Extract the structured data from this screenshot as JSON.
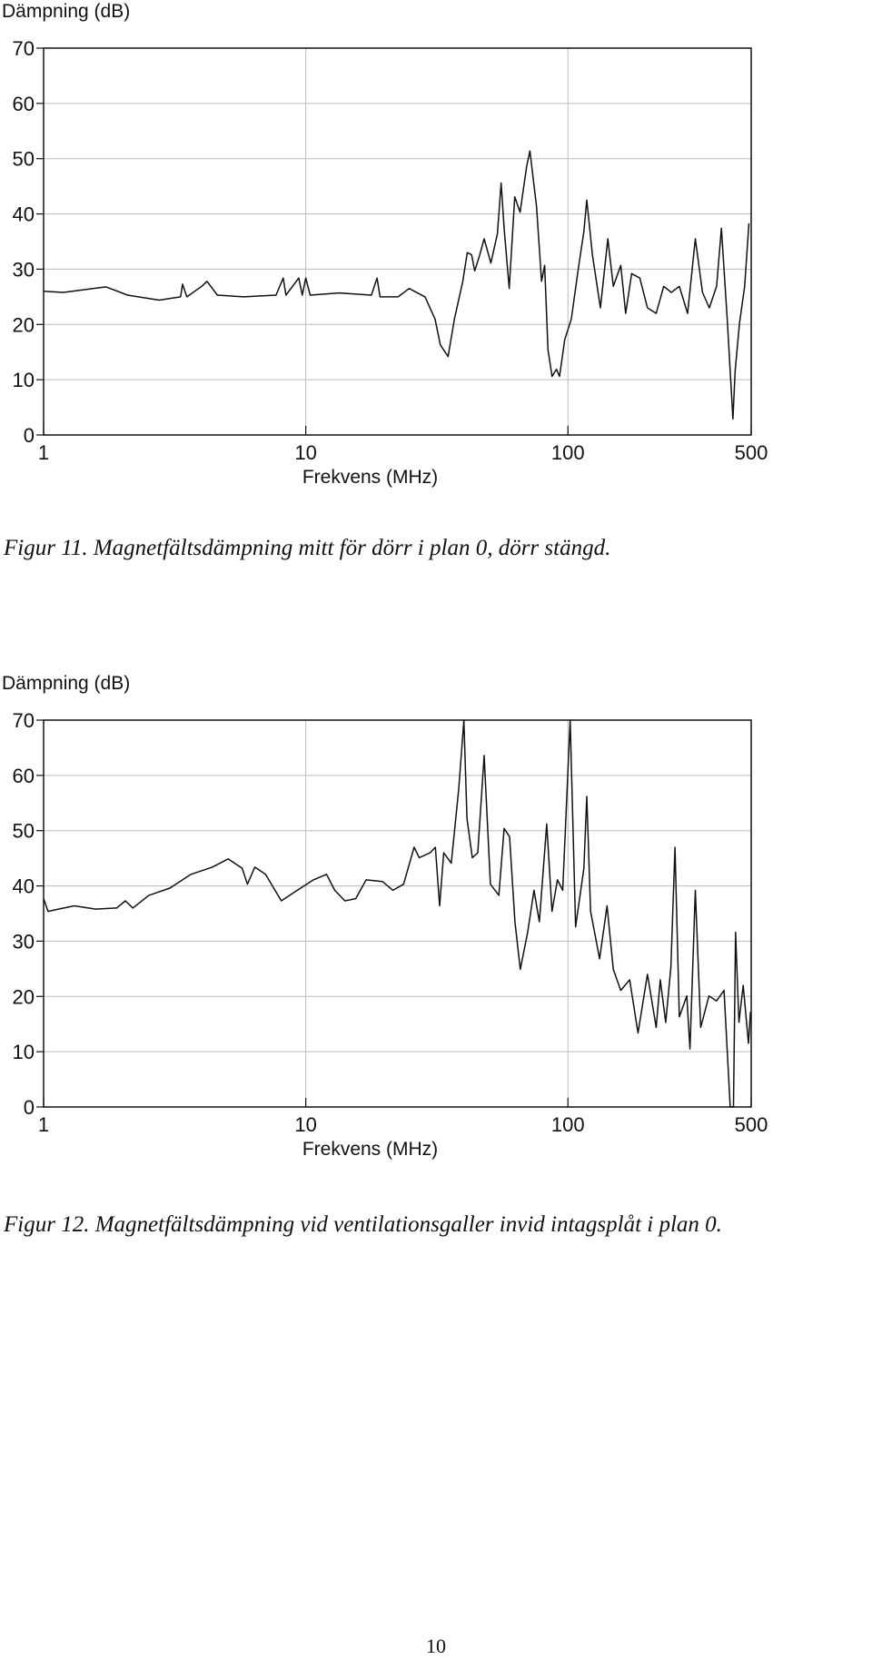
{
  "chart_data": [
    {
      "type": "line",
      "y_label": "Dämpning (dB)",
      "x_label": "Frekvens (MHz)",
      "log_x": true,
      "grid": true,
      "caption": "Figur 11. Magnetfältsdämpning mitt för dörr i plan 0, dörr stängd.",
      "xlim": [
        1,
        500
      ],
      "xticks": [
        1,
        10,
        100,
        500
      ],
      "ylim": [
        0,
        70
      ],
      "yticks": [
        0,
        10,
        20,
        30,
        40,
        50,
        60,
        70
      ],
      "series": [
        {
          "color": "#111111",
          "x": [
            1,
            1.19,
            1.73,
            2.09,
            2.76,
            3.33,
            3.39,
            3.52,
            4.01,
            4.2,
            4.6,
            5.8,
            7.7,
            8.2,
            8.4,
            9.4,
            9.7,
            10,
            10.4,
            13.4,
            17.8,
            18.7,
            19.2,
            22.5,
            24.8,
            28.5,
            31.1,
            32.6,
            34.9,
            36.9,
            39.7,
            41.3,
            42.9,
            44.1,
            46.1,
            47.9,
            50.8,
            53.8,
            55.6,
            57.1,
            59.7,
            62.7,
            65.7,
            69.6,
            71.6,
            75.9,
            79.3,
            81.5,
            83.9,
            87,
            90.4,
            92.9,
            97.3,
            103,
            110,
            115,
            118,
            124,
            133,
            142,
            149,
            159,
            166,
            175,
            188,
            201,
            217,
            232,
            248,
            266,
            286,
            306,
            326,
            346,
            369,
            385,
            405,
            426,
            434,
            451,
            472,
            490
          ],
          "values": [
            26,
            25.8,
            26.8,
            25.3,
            24.4,
            25,
            27.3,
            25,
            26.9,
            27.8,
            25.3,
            25,
            25.3,
            28.4,
            25.3,
            28.4,
            25.3,
            28.4,
            25.3,
            25.7,
            25.3,
            28.4,
            25,
            25,
            26.5,
            25,
            21,
            16.3,
            14.2,
            21,
            27.8,
            33,
            32.6,
            29.7,
            32.6,
            35.5,
            31.1,
            36.4,
            45.6,
            37.4,
            26.5,
            43.1,
            40.3,
            48.6,
            51.4,
            41.3,
            27.8,
            30.7,
            15.4,
            10.6,
            11.9,
            10.6,
            17.3,
            21,
            30.7,
            36.8,
            42.5,
            32.6,
            23,
            35.5,
            26.9,
            30.7,
            22,
            29.2,
            28.4,
            23,
            22,
            26.9,
            25.8,
            26.9,
            22,
            35.5,
            25.8,
            23,
            26.9,
            37.4,
            21,
            2.9,
            11.5,
            20.2,
            26.9,
            38.3
          ]
        }
      ]
    },
    {
      "type": "line",
      "y_label": "Dämpning (dB)",
      "x_label": "Frekvens (MHz)",
      "log_x": true,
      "grid": true,
      "caption": "Figur 12. Magnetfältsdämpning vid ventilationsgaller invid intagsplåt i plan 0.",
      "xlim": [
        1,
        500
      ],
      "xticks": [
        1,
        10,
        100,
        500
      ],
      "ylim": [
        0,
        70
      ],
      "yticks": [
        0,
        10,
        20,
        30,
        40,
        50,
        60,
        70
      ],
      "series": [
        {
          "color": "#111111",
          "x": [
            1,
            1.04,
            1.14,
            1.31,
            1.58,
            1.9,
            2.05,
            2.19,
            2.52,
            3.03,
            3.65,
            4.4,
            5.06,
            5.72,
            5.99,
            6.39,
            7.02,
            8.07,
            9.28,
            10.7,
            12,
            12.9,
            14.1,
            15.5,
            17,
            19.6,
            21.5,
            23.6,
            25.9,
            27.1,
            29.8,
            31.2,
            32.4,
            33.6,
            35.9,
            38.3,
            40.1,
            41.2,
            43.2,
            45.3,
            47.9,
            50.6,
            54.5,
            57.1,
            59.9,
            62.8,
            65.8,
            70.2,
            74.2,
            77.8,
            83,
            86.9,
            91.2,
            95.5,
            102,
            107,
            115,
            118,
            122,
            132,
            141,
            149,
            159,
            172,
            185,
            201,
            217,
            225,
            236,
            247,
            256,
            266,
            284,
            292,
            306,
            321,
            345,
            369,
            394,
            416,
            428,
            436,
            449,
            466,
            488,
            497
          ],
          "values": [
            37.7,
            35.4,
            35.8,
            36.4,
            35.8,
            36,
            37.3,
            36,
            38.3,
            39.6,
            42.1,
            43.4,
            44.9,
            43.2,
            40.3,
            43.4,
            42.1,
            37.3,
            39.2,
            41.1,
            42.1,
            39.2,
            37.3,
            37.7,
            41.1,
            40.8,
            39.2,
            40.3,
            47,
            45.1,
            46,
            47,
            36.4,
            46,
            44.1,
            57.5,
            70,
            52.2,
            45.1,
            46,
            63.6,
            40.3,
            38.3,
            50.4,
            48.9,
            33.5,
            24.9,
            31.6,
            39.2,
            33.5,
            51.2,
            35.4,
            41.1,
            39.2,
            70,
            32.6,
            43.2,
            56.2,
            35.4,
            26.8,
            36.4,
            24.9,
            21.1,
            23,
            13.4,
            24,
            14.4,
            23,
            15.3,
            25.3,
            47,
            16.3,
            20.1,
            10.5,
            39.2,
            14.4,
            20.1,
            19.2,
            21.1,
            0,
            0,
            31.6,
            15.3,
            22,
            11.5,
            17.2
          ]
        }
      ]
    }
  ],
  "page_number": "10"
}
